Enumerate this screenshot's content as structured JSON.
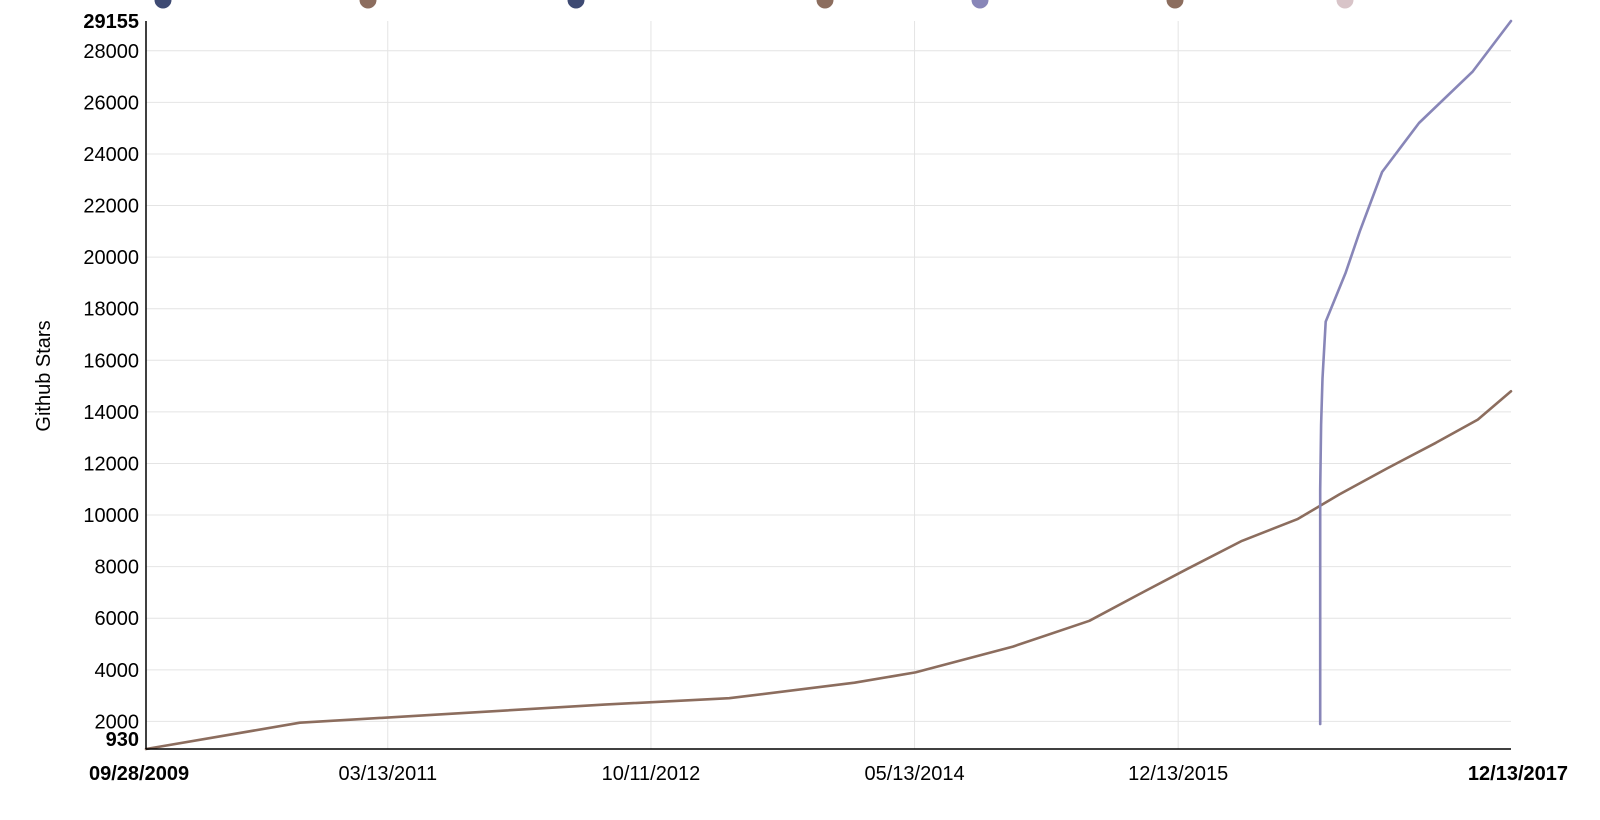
{
  "chart_data": {
    "type": "line",
    "ylabel": "Github Stars",
    "xlabel": "",
    "ylim": [
      930,
      29155
    ],
    "xlim": [
      "2009-09-28",
      "2017-12-13"
    ],
    "grid": true,
    "legend_position": "top",
    "y_ticks": [
      2000,
      4000,
      6000,
      8000,
      10000,
      12000,
      14000,
      16000,
      18000,
      20000,
      22000,
      24000,
      26000,
      28000
    ],
    "y_extreme_labels": {
      "min": "930",
      "max": "29155"
    },
    "x_ticks": [
      {
        "date": "2011-03-13",
        "label": "03/13/2011"
      },
      {
        "date": "2012-10-11",
        "label": "10/11/2012"
      },
      {
        "date": "2014-05-13",
        "label": "05/13/2014"
      },
      {
        "date": "2015-12-13",
        "label": "12/13/2015"
      }
    ],
    "x_extreme_labels": {
      "min": "09/28/2009",
      "max": "12/13/2017"
    },
    "series": [
      {
        "color": "#8c6d5e",
        "points": [
          [
            "2009-09-28",
            930
          ],
          [
            "2010-09-01",
            1950
          ],
          [
            "2011-08-01",
            2300
          ],
          [
            "2012-07-01",
            2650
          ],
          [
            "2013-04-01",
            2900
          ],
          [
            "2014-01-01",
            3500
          ],
          [
            "2014-05-15",
            3900
          ],
          [
            "2014-12-15",
            4900
          ],
          [
            "2015-06-01",
            5900
          ],
          [
            "2015-09-15",
            6900
          ],
          [
            "2016-01-01",
            7900
          ],
          [
            "2016-05-01",
            9000
          ],
          [
            "2016-09-01",
            9850
          ],
          [
            "2016-12-01",
            10800
          ],
          [
            "2017-03-15",
            11800
          ],
          [
            "2017-07-01",
            12800
          ],
          [
            "2017-10-01",
            13700
          ],
          [
            "2017-12-13",
            14800
          ]
        ]
      },
      {
        "color": "#8886b8",
        "points": [
          [
            "2016-10-20",
            1900
          ],
          [
            "2016-10-20",
            11000
          ],
          [
            "2016-10-22",
            13500
          ],
          [
            "2016-10-25",
            15300
          ],
          [
            "2016-11-01",
            17500
          ],
          [
            "2016-12-15",
            19400
          ],
          [
            "2017-01-15",
            21000
          ],
          [
            "2017-03-05",
            23300
          ],
          [
            "2017-05-25",
            25200
          ],
          [
            "2017-09-20",
            27200
          ],
          [
            "2017-12-13",
            29155
          ]
        ]
      }
    ],
    "legend_colors": [
      "#3e4a73",
      "#8c6d5e",
      "#3e4a73",
      "#8c6d5e",
      "#8886b8",
      "#8c6d5e",
      "#d8c4c8"
    ]
  }
}
